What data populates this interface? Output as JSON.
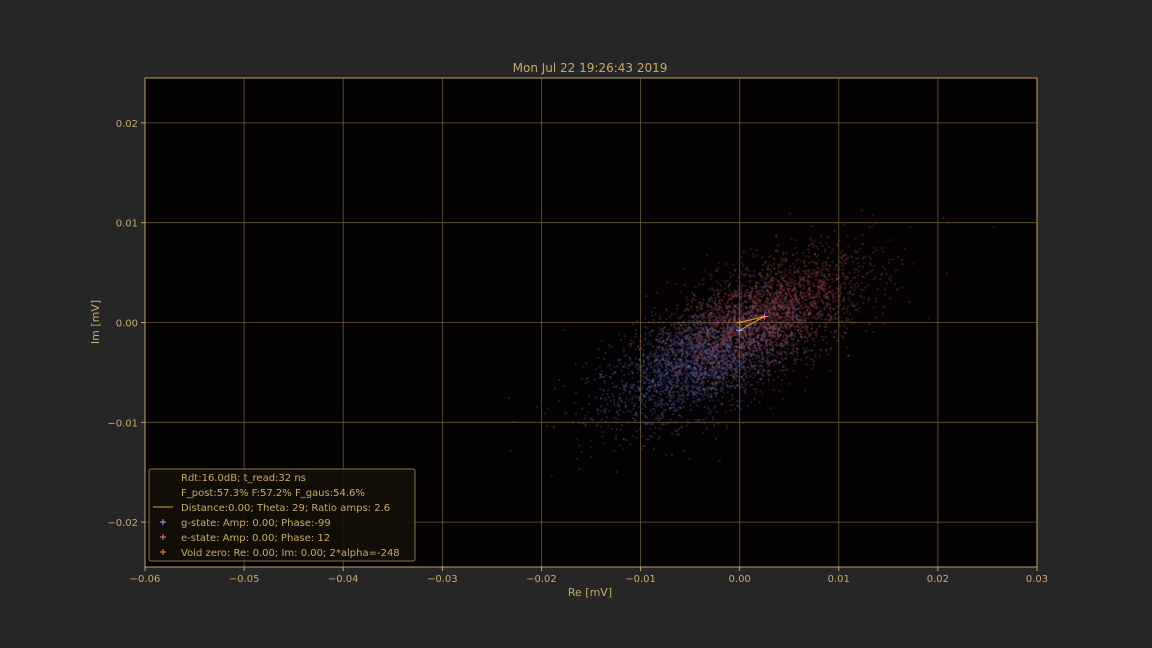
{
  "chart_data": {
    "type": "scatter",
    "title": "Mon Jul 22 19:26:43 2019",
    "xlabel": "Re [mV]",
    "ylabel": "Im [mV]",
    "xlim": [
      -0.06,
      0.03
    ],
    "ylim": [
      -0.0245,
      0.0245
    ],
    "xticks": [
      -0.06,
      -0.05,
      -0.04,
      -0.03,
      -0.02,
      -0.01,
      0.0,
      0.01,
      0.02,
      0.03
    ],
    "xtick_labels": [
      "−0.06",
      "−0.05",
      "−0.04",
      "−0.03",
      "−0.02",
      "−0.01",
      "0.00",
      "0.01",
      "0.02",
      "0.03"
    ],
    "yticks": [
      -0.02,
      -0.01,
      0.0,
      0.01,
      0.02
    ],
    "ytick_labels": [
      "−0.02",
      "−0.01",
      "0.00",
      "0.01",
      "0.02"
    ],
    "grid": true,
    "legend_position": "lower-left",
    "clouds": [
      {
        "state": "g",
        "color": "#5a6ab8",
        "center": [
          -0.0035,
          -0.0035
        ],
        "spread": [
          0.0105,
          0.0045
        ]
      },
      {
        "state": "e",
        "color": "#a84848",
        "center": [
          0.0025,
          0.0005
        ],
        "spread": [
          0.0105,
          0.0045
        ]
      }
    ],
    "markers": {
      "g_state": {
        "x": -3e-05,
        "y": -0.0008,
        "color": "#9aa6ff"
      },
      "e_state": {
        "x": 0.0025,
        "y": 0.0006,
        "color": "#ff7a7a"
      },
      "void_zero": {
        "x": 0.0,
        "y": 0.0,
        "color": "#e0a020"
      }
    },
    "line_color": "#e0a020",
    "legend": [
      {
        "text": "Rdt:16.0dB; t_read:32 ns",
        "marker": "none"
      },
      {
        "text": "F_post:57.3% F:57.2% F_gaus:54.6%",
        "marker": "none"
      },
      {
        "text": "Distance:0.00; Theta: 29; Ratio amps:  2.6",
        "marker": "line"
      },
      {
        "text": "g-state: Amp: 0.00; Phase:-99",
        "marker": "plus-g"
      },
      {
        "text": "e-state: Amp: 0.00; Phase: 12",
        "marker": "plus-e"
      },
      {
        "text": "Void zero: Re: 0.00; Im: 0.00; 2*alpha=-248",
        "marker": "plus-void"
      }
    ]
  },
  "colors": {
    "figure_bg": "#262626",
    "plot_bg": "#030101",
    "axis": "#bfa06a",
    "grid": "#6b5a35",
    "text": "#c9a86a"
  }
}
